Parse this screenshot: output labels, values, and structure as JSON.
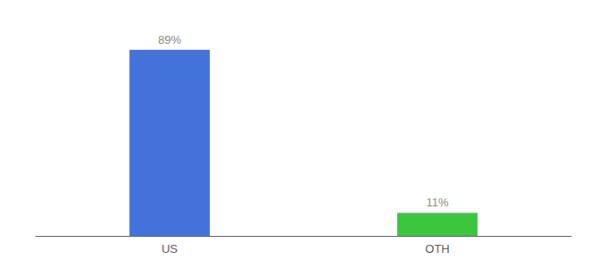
{
  "chart_data": {
    "type": "bar",
    "categories": [
      "US",
      "OTH"
    ],
    "values": [
      89,
      11
    ],
    "value_labels": [
      "89%",
      "11%"
    ],
    "colors": [
      "#4472db",
      "#3ec53e"
    ],
    "ylim": [
      0,
      100
    ],
    "data_labels": true,
    "tick_labels": "x",
    "grid": false
  }
}
